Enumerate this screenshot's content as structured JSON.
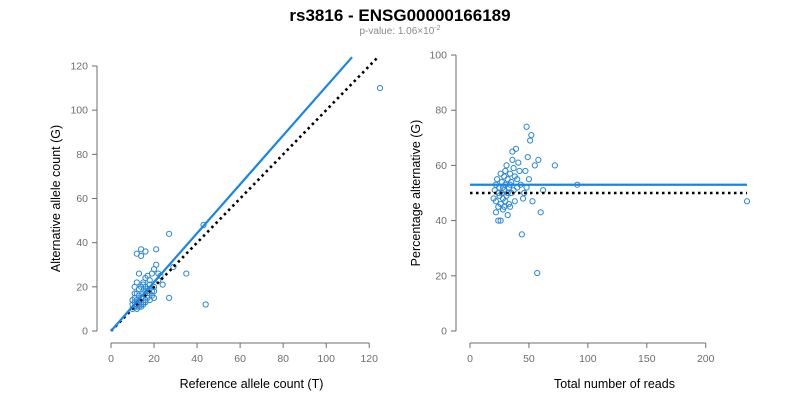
{
  "figure": {
    "title": "rs3816 - ENSG00000166189",
    "subtitle_prefix": "p-value: 1.06×10",
    "subtitle_exponent": "-2"
  },
  "colors": {
    "points": "#2a87d6",
    "fit_line": "#1a85e8",
    "reference_line": "#000000",
    "axis": "#6e6e6e"
  },
  "chart_data": [
    {
      "type": "scatter",
      "xlabel": "Reference allele count (T)",
      "ylabel": "Alternative allele count (G)",
      "xlim": [
        0,
        125
      ],
      "ylim": [
        0,
        120
      ],
      "xticks": [
        0,
        20,
        40,
        60,
        80,
        100,
        120
      ],
      "yticks": [
        0,
        20,
        40,
        60,
        80,
        100,
        120
      ],
      "grid": false,
      "points": [
        [
          10,
          10
        ],
        [
          10,
          12
        ],
        [
          11,
          11
        ],
        [
          11,
          13
        ],
        [
          12,
          10
        ],
        [
          12,
          12
        ],
        [
          12,
          14
        ],
        [
          13,
          11
        ],
        [
          13,
          13
        ],
        [
          13,
          16
        ],
        [
          14,
          12
        ],
        [
          14,
          15
        ],
        [
          15,
          13
        ],
        [
          15,
          17
        ],
        [
          16,
          14
        ],
        [
          16,
          18
        ],
        [
          17,
          15
        ],
        [
          17,
          16
        ],
        [
          18,
          17
        ],
        [
          18,
          19
        ],
        [
          19,
          18
        ],
        [
          20,
          20
        ],
        [
          11,
          15
        ],
        [
          12,
          17
        ],
        [
          13,
          19
        ],
        [
          14,
          20
        ],
        [
          15,
          22
        ],
        [
          16,
          24
        ],
        [
          17,
          25
        ],
        [
          18,
          23
        ],
        [
          19,
          26
        ],
        [
          20,
          28
        ],
        [
          12,
          22
        ],
        [
          13,
          26
        ],
        [
          15,
          21
        ],
        [
          12,
          35
        ],
        [
          14,
          34
        ],
        [
          14,
          37
        ],
        [
          16,
          36
        ],
        [
          21,
          37
        ],
        [
          21,
          30
        ],
        [
          22,
          26
        ],
        [
          23,
          25
        ],
        [
          27,
          44
        ],
        [
          27,
          15
        ],
        [
          29,
          29
        ],
        [
          35,
          26
        ],
        [
          43,
          48
        ],
        [
          44,
          12
        ],
        [
          125,
          110
        ],
        [
          16,
          20
        ],
        [
          17,
          19
        ],
        [
          18,
          21
        ],
        [
          19,
          16
        ],
        [
          20,
          18
        ],
        [
          15,
          12
        ],
        [
          16,
          13
        ],
        [
          10,
          14
        ],
        [
          11,
          17
        ],
        [
          14,
          11
        ],
        [
          18,
          14
        ],
        [
          20,
          15
        ],
        [
          22,
          23
        ],
        [
          24,
          21
        ],
        [
          12,
          11
        ],
        [
          13,
          12
        ],
        [
          11,
          20
        ]
      ],
      "fit_line": {
        "x": [
          0,
          112
        ],
        "y": [
          0,
          124
        ]
      },
      "reference_line": {
        "x": [
          0,
          124
        ],
        "y": [
          0,
          124
        ]
      }
    },
    {
      "type": "scatter",
      "xlabel": "Total number of reads",
      "ylabel": "Percentage alternative (G)",
      "xlim": [
        0,
        235
      ],
      "ylim": [
        0,
        100
      ],
      "xticks": [
        0,
        50,
        100,
        150,
        200
      ],
      "yticks": [
        0,
        20,
        40,
        60,
        80,
        100
      ],
      "grid": false,
      "points": [
        [
          20,
          48
        ],
        [
          21,
          51
        ],
        [
          22,
          47
        ],
        [
          22,
          53
        ],
        [
          23,
          55
        ],
        [
          24,
          50
        ],
        [
          24,
          45
        ],
        [
          25,
          52
        ],
        [
          25,
          49
        ],
        [
          26,
          57
        ],
        [
          26,
          46
        ],
        [
          27,
          54
        ],
        [
          27,
          50
        ],
        [
          28,
          48
        ],
        [
          28,
          52
        ],
        [
          29,
          56
        ],
        [
          29,
          51
        ],
        [
          30,
          58
        ],
        [
          30,
          53
        ],
        [
          30,
          47
        ],
        [
          31,
          60
        ],
        [
          31,
          49
        ],
        [
          32,
          55
        ],
        [
          32,
          50
        ],
        [
          33,
          52
        ],
        [
          33,
          46
        ],
        [
          34,
          57
        ],
        [
          34,
          53
        ],
        [
          35,
          54
        ],
        [
          35,
          50
        ],
        [
          36,
          65
        ],
        [
          36,
          62
        ],
        [
          37,
          59
        ],
        [
          37,
          51
        ],
        [
          38,
          56
        ],
        [
          38,
          47
        ],
        [
          39,
          66
        ],
        [
          40,
          52
        ],
        [
          40,
          55
        ],
        [
          41,
          61
        ],
        [
          42,
          58
        ],
        [
          43,
          53
        ],
        [
          44,
          35
        ],
        [
          45,
          48
        ],
        [
          46,
          50
        ],
        [
          47,
          58
        ],
        [
          48,
          74
        ],
        [
          48,
          52
        ],
        [
          49,
          63
        ],
        [
          50,
          55
        ],
        [
          51,
          69
        ],
        [
          52,
          71
        ],
        [
          53,
          47
        ],
        [
          55,
          60
        ],
        [
          57,
          21
        ],
        [
          58,
          62
        ],
        [
          60,
          43
        ],
        [
          62,
          51
        ],
        [
          72,
          60
        ],
        [
          91,
          53
        ],
        [
          235,
          47
        ],
        [
          26,
          40
        ],
        [
          28,
          44
        ],
        [
          29,
          45
        ],
        [
          32,
          42
        ],
        [
          34,
          45
        ],
        [
          22,
          43
        ],
        [
          24,
          40
        ]
      ],
      "fit_line": {
        "x": [
          0,
          235
        ],
        "y": [
          53,
          53
        ]
      },
      "reference_line": {
        "x": [
          0,
          235
        ],
        "y": [
          50,
          50
        ]
      }
    }
  ]
}
